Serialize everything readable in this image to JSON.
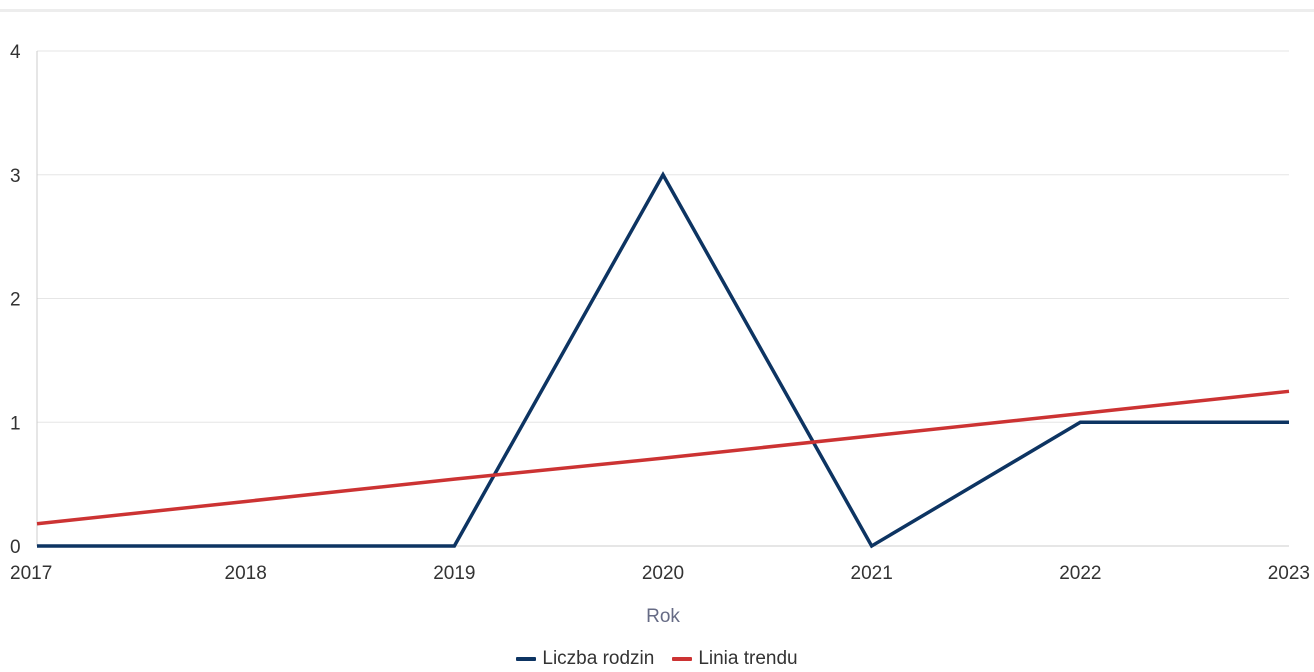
{
  "chart_data": {
    "type": "line",
    "title": "",
    "xlabel": "Rok",
    "ylabel": "",
    "x": [
      "2017",
      "2018",
      "2019",
      "2020",
      "2021",
      "2022",
      "2023"
    ],
    "xlim": [
      2017,
      2023
    ],
    "ylim": [
      0,
      4
    ],
    "yticks": [
      "0",
      "1",
      "2",
      "3",
      "4"
    ],
    "grid": true,
    "legend_position": "bottom",
    "series": [
      {
        "name": "Liczba rodzin",
        "color": "#0d3462",
        "values": [
          0,
          0,
          0,
          3,
          0,
          1,
          1
        ]
      },
      {
        "name": "Linia trendu",
        "color": "#cc3333",
        "values": [
          0.18,
          0.36,
          0.54,
          0.71,
          0.89,
          1.07,
          1.25
        ]
      }
    ]
  }
}
